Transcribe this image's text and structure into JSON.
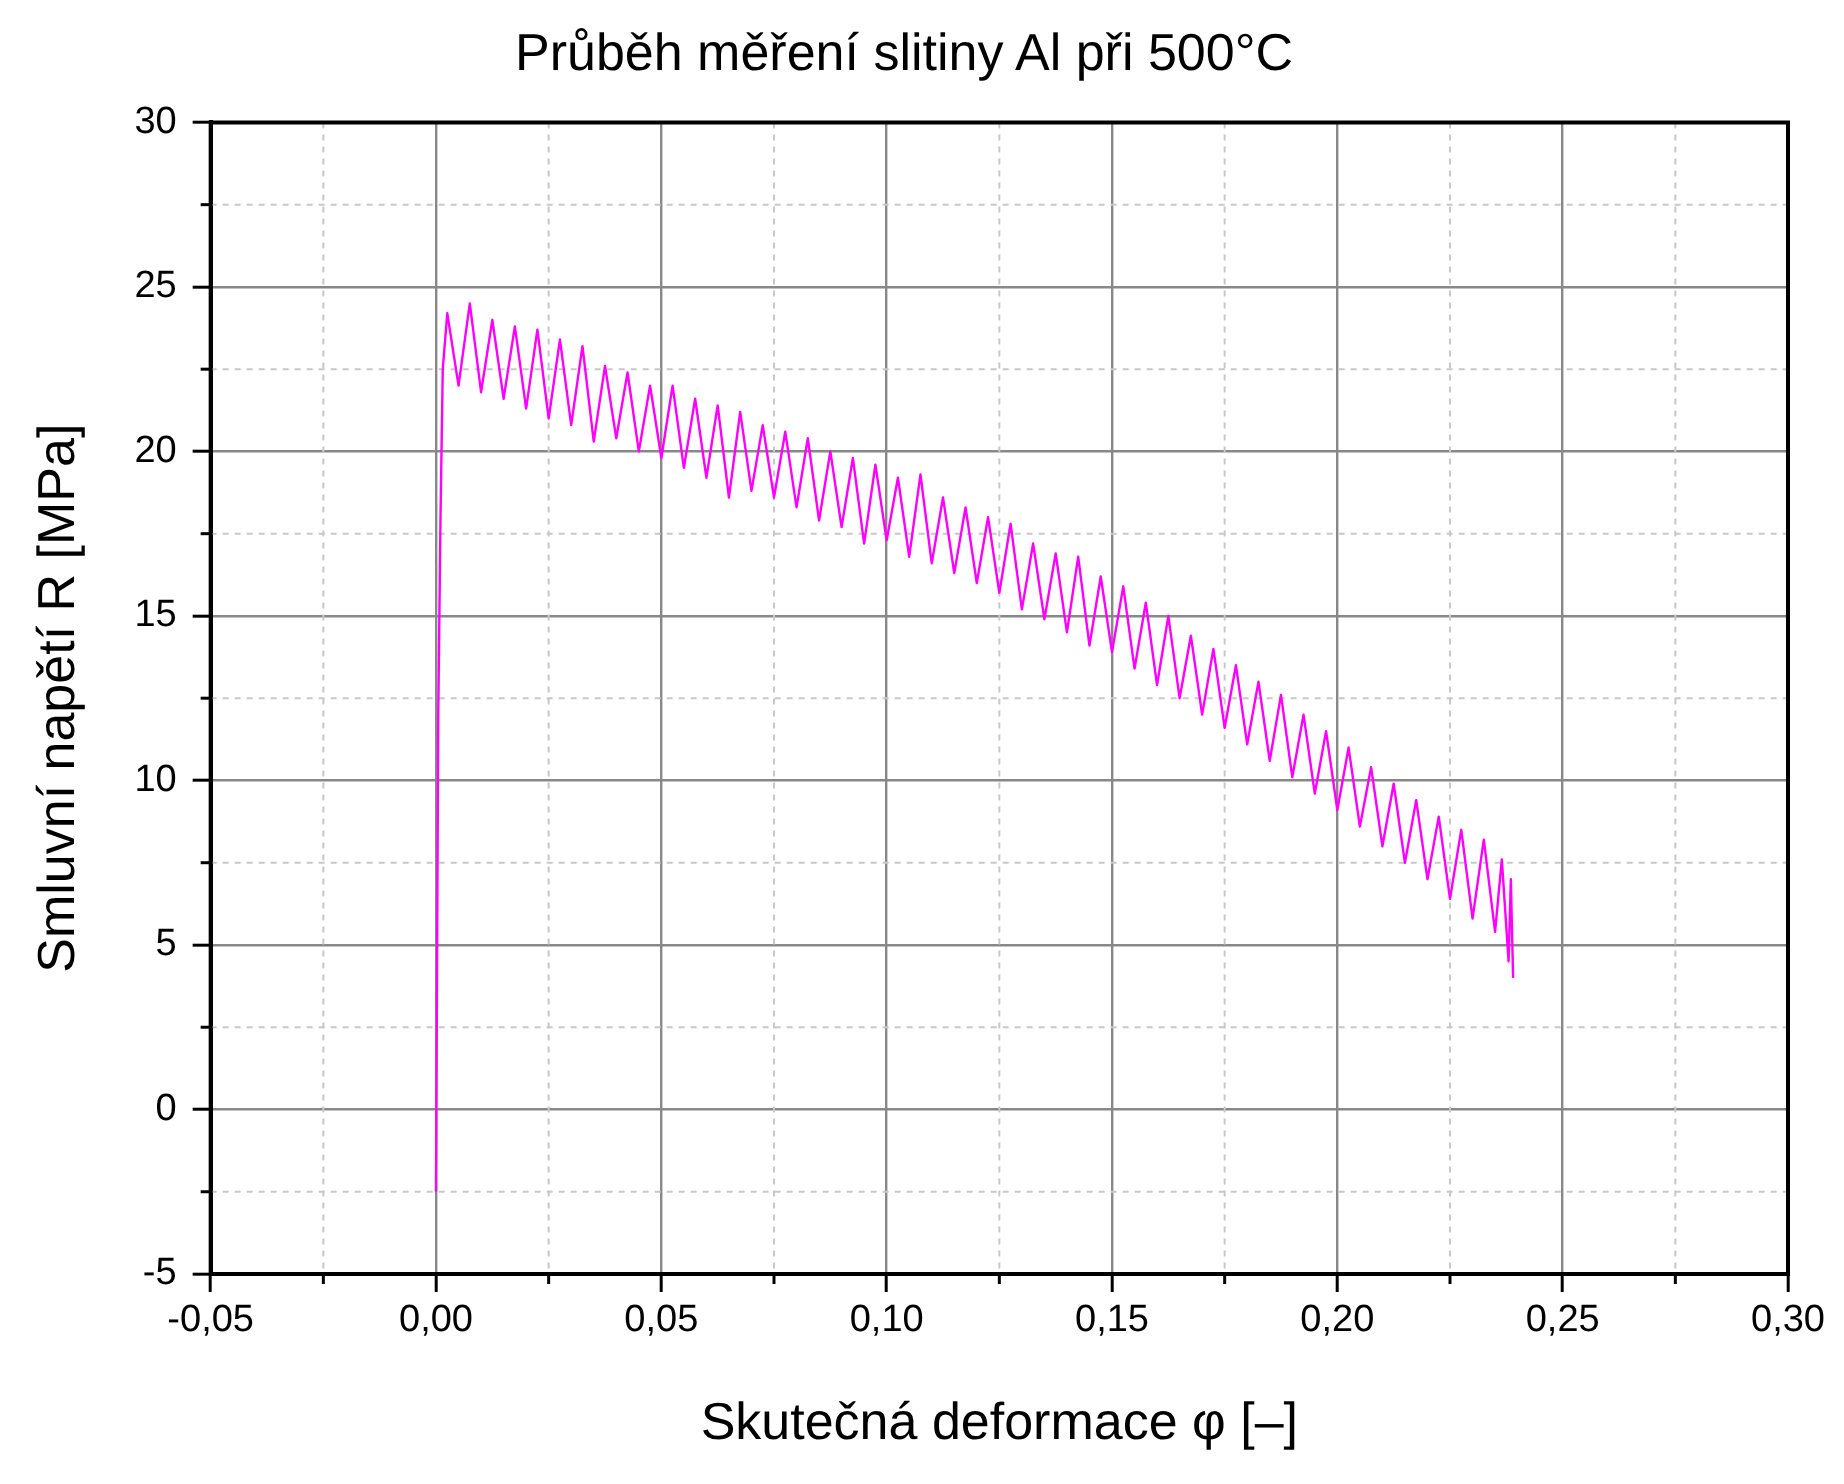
{
  "chart_data": {
    "type": "line",
    "title": "Průběh měření slitiny Al při 500°C",
    "xlabel": "Skutečná deformace φ [–]",
    "ylabel": "Smluvní napětí R [MPa]",
    "xlim": [
      -0.05,
      0.3
    ],
    "xticks": [
      {
        "value": -0.05,
        "label": "-0,05"
      },
      {
        "value": 0,
        "label": "0,00"
      },
      {
        "value": 0.05,
        "label": "0,05"
      },
      {
        "value": 0.1,
        "label": "0,10"
      },
      {
        "value": 0.15,
        "label": "0,15"
      },
      {
        "value": 0.2,
        "label": "0,20"
      },
      {
        "value": 0.25,
        "label": "0,25"
      },
      {
        "value": 0.3,
        "label": "0,30"
      }
    ],
    "ylim": [
      -5,
      30
    ],
    "yticks": [
      -5,
      0,
      5,
      10,
      15,
      20,
      25,
      30
    ],
    "grid": true,
    "legend": false,
    "marker": "none",
    "line_style": "solid",
    "series": [
      {
        "color": "#ff00ff",
        "x": [
          0,
          0.0005,
          0.001,
          0.0015,
          0.0025,
          0.005,
          0.0075,
          0.01,
          0.0125,
          0.015,
          0.0175,
          0.02,
          0.0225,
          0.025,
          0.0275,
          0.03,
          0.0325,
          0.035,
          0.0375,
          0.04,
          0.0425,
          0.045,
          0.0475,
          0.05,
          0.0525,
          0.055,
          0.0575,
          0.06,
          0.0625,
          0.065,
          0.0675,
          0.07,
          0.0725,
          0.075,
          0.0775,
          0.08,
          0.0825,
          0.085,
          0.0875,
          0.09,
          0.0925,
          0.095,
          0.0975,
          0.1,
          0.1025,
          0.105,
          0.1075,
          0.11,
          0.1125,
          0.115,
          0.1175,
          0.12,
          0.1225,
          0.125,
          0.1275,
          0.13,
          0.1325,
          0.135,
          0.1375,
          0.14,
          0.1425,
          0.145,
          0.1475,
          0.15,
          0.1525,
          0.155,
          0.1575,
          0.16,
          0.1625,
          0.165,
          0.1675,
          0.17,
          0.1725,
          0.175,
          0.1775,
          0.18,
          0.1825,
          0.185,
          0.1875,
          0.19,
          0.1925,
          0.195,
          0.1975,
          0.2,
          0.2025,
          0.205,
          0.2075,
          0.21,
          0.2125,
          0.215,
          0.2175,
          0.22,
          0.2225,
          0.225,
          0.2275,
          0.23,
          0.2325,
          0.235,
          0.2365,
          0.238,
          0.2385,
          0.239
        ],
        "values": [
          -2.5,
          12,
          18,
          22.5,
          24.2,
          22.0,
          24.5,
          21.8,
          24.0,
          21.6,
          23.8,
          21.3,
          23.7,
          21.0,
          23.4,
          20.8,
          23.2,
          20.3,
          22.6,
          20.4,
          22.4,
          20.0,
          22.0,
          19.8,
          22.0,
          19.5,
          21.6,
          19.2,
          21.4,
          18.6,
          21.2,
          18.8,
          20.8,
          18.6,
          20.6,
          18.3,
          20.4,
          17.9,
          20.0,
          17.7,
          19.8,
          17.2,
          19.6,
          17.3,
          19.2,
          16.8,
          19.3,
          16.6,
          18.6,
          16.3,
          18.3,
          16.0,
          18.0,
          15.7,
          17.8,
          15.2,
          17.2,
          14.9,
          16.9,
          14.5,
          16.8,
          14.1,
          16.2,
          13.9,
          15.9,
          13.4,
          15.4,
          12.9,
          15.0,
          12.5,
          14.4,
          12.0,
          14.0,
          11.6,
          13.5,
          11.1,
          13.0,
          10.6,
          12.6,
          10.1,
          12.0,
          9.6,
          11.5,
          9.1,
          11.0,
          8.6,
          10.4,
          8.0,
          9.9,
          7.5,
          9.4,
          7.0,
          8.9,
          6.4,
          8.5,
          5.8,
          8.2,
          5.4,
          7.6,
          4.5,
          7.0,
          4.0
        ]
      }
    ]
  }
}
